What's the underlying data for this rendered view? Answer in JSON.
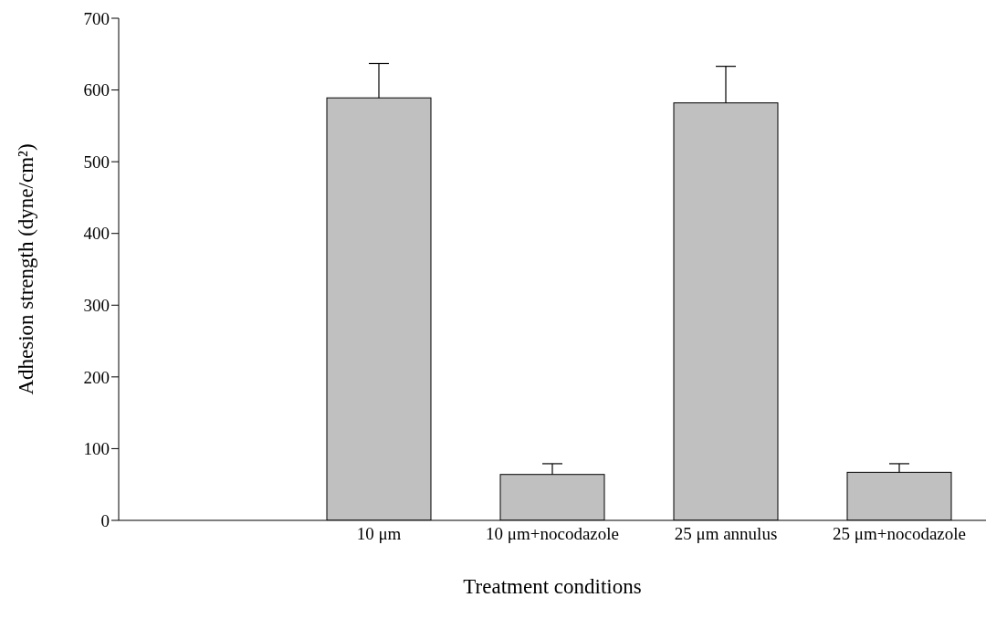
{
  "chart_data": {
    "type": "bar",
    "xlabel": "Treatment conditions",
    "ylabel": "Adhesion strength (dyne/cm²)",
    "categories": [
      null,
      "10 μm",
      "10 μm+nocodazole",
      "25 μm annulus",
      "25 μm+nocodazole"
    ],
    "values": [
      null,
      589,
      64,
      582,
      67
    ],
    "errors": [
      null,
      [
        589,
        637
      ],
      [
        64,
        79
      ],
      [
        582,
        633
      ],
      [
        67,
        79
      ]
    ],
    "color": "#c0c0c0",
    "ylim": [
      0,
      700
    ],
    "yticks": [
      0,
      100,
      200,
      300,
      400,
      500,
      600,
      700
    ]
  }
}
